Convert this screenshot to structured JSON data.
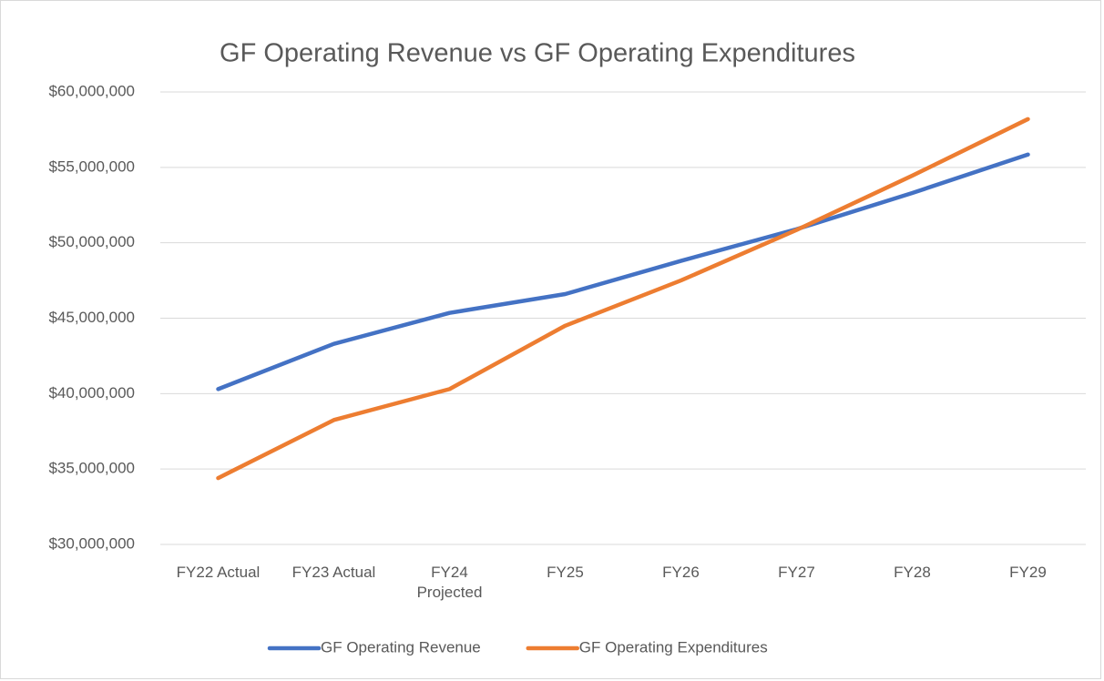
{
  "chart_data": {
    "type": "line",
    "title": "GF Operating Revenue vs GF Operating Expenditures",
    "categories": [
      "FY22 Actual",
      "FY23 Actual",
      "FY24 Projected",
      "FY25",
      "FY26",
      "FY27",
      "FY28",
      "FY29"
    ],
    "series": [
      {
        "name": "GF Operating Revenue",
        "color": "#4472c4",
        "values": [
          40300000,
          43300000,
          45350000,
          46600000,
          48800000,
          50900000,
          53300000,
          55850000
        ]
      },
      {
        "name": "GF Operating Expenditures",
        "color": "#ed7d31",
        "values": [
          34400000,
          38250000,
          40300000,
          44500000,
          47500000,
          50850000,
          54450000,
          58200000
        ]
      }
    ],
    "ylim": [
      30000000,
      60000000
    ],
    "yticks": [
      {
        "value": 30000000,
        "label": "$30,000,000"
      },
      {
        "value": 35000000,
        "label": "$35,000,000"
      },
      {
        "value": 40000000,
        "label": "$40,000,000"
      },
      {
        "value": 45000000,
        "label": "$45,000,000"
      },
      {
        "value": 50000000,
        "label": "$50,000,000"
      },
      {
        "value": 55000000,
        "label": "$55,000,000"
      },
      {
        "value": 60000000,
        "label": "$60,000,000"
      }
    ],
    "grid": true,
    "legend": "bottom"
  }
}
